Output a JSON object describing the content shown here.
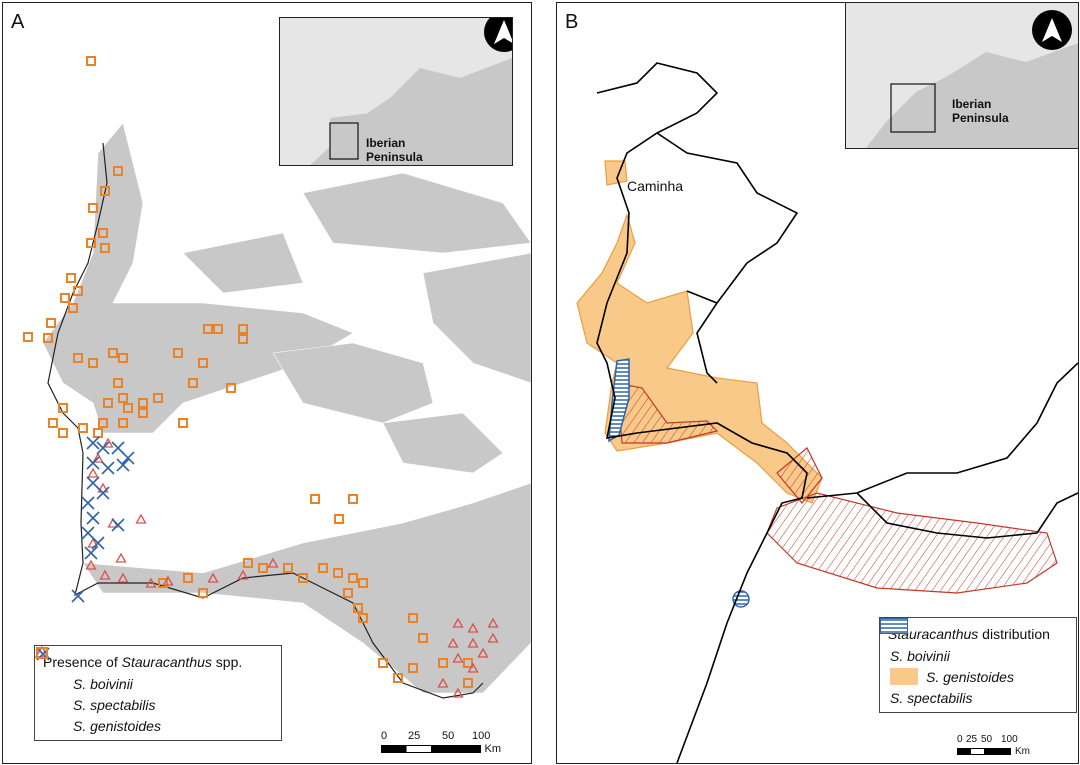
{
  "panel_a": {
    "label": "A",
    "inset": {
      "label_line1": "Iberian",
      "label_line2": "Peninsula",
      "north_icon": "north-arrow-icon"
    },
    "legend": {
      "title_prefix": "Presence of ",
      "title_italic": "Stauracanthus",
      "title_suffix": " spp.",
      "items": [
        {
          "label": "S. boivinii",
          "symbol": "triangle",
          "color": "#d9534f"
        },
        {
          "label": "S. spectabilis",
          "symbol": "cross",
          "color": "#2f64a8"
        },
        {
          "label": "S. genistoides",
          "symbol": "square",
          "color": "#e8832a"
        }
      ]
    },
    "scale": {
      "ticks": [
        "0",
        "25",
        "50",
        "100"
      ],
      "unit": "Km"
    }
  },
  "panel_b": {
    "label": "B",
    "place_label": "Caminha",
    "inset": {
      "label_line1": "Iberian",
      "label_line2": "Peninsula",
      "north_icon": "north-arrow-icon"
    },
    "legend": {
      "title_italic": "Stauracanthus",
      "title_suffix": " distribution",
      "items": [
        {
          "label": "S. boivinii",
          "fill": "hatched-diagonal",
          "color": "#c0392b"
        },
        {
          "label": "S. genistoides",
          "fill": "solid",
          "color": "#f9c98a"
        },
        {
          "label": "S. spectabilis",
          "fill": "horizontal-stripes",
          "color": "#2f64a8"
        }
      ]
    },
    "scale": {
      "ticks": [
        "0",
        "25",
        "50",
        "100"
      ],
      "unit": "Km"
    }
  },
  "colors": {
    "land_gray": "#c8c8c8",
    "boivinii": "#d9534f",
    "spectabilis": "#2f64a8",
    "genistoides": "#e8832a",
    "genistoides_fill": "#f9c98a"
  }
}
